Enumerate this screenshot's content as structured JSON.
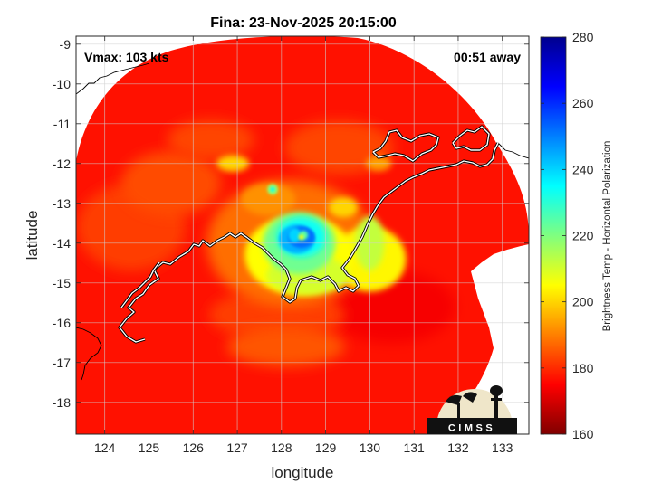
{
  "chart_data": {
    "type": "heatmap",
    "title": "Fina: 23-Nov-2025 20:15:00",
    "annotations": {
      "vmax": "Vmax: 103 kts",
      "time_offset": "00:51 away"
    },
    "xlabel": "longitude",
    "ylabel": "latitude",
    "xlim": [
      123.35,
      133.6
    ],
    "ylim": [
      -18.8,
      -8.8
    ],
    "x_ticks": [
      124,
      125,
      126,
      127,
      128,
      129,
      130,
      131,
      132,
      133
    ],
    "y_ticks": [
      -9,
      -10,
      -11,
      -12,
      -13,
      -14,
      -15,
      -16,
      -17,
      -18
    ],
    "grid": true,
    "colorbar": {
      "label": "Brightness Temp - Horizontal Polarization",
      "range": [
        160,
        280
      ],
      "ticks": [
        160,
        180,
        200,
        220,
        240,
        260,
        280
      ],
      "colormap": "jet"
    },
    "storm_center": {
      "lon": 128.45,
      "lat": -13.85
    },
    "min_brightness_temp": 185,
    "logo_text": "CIMSS"
  }
}
